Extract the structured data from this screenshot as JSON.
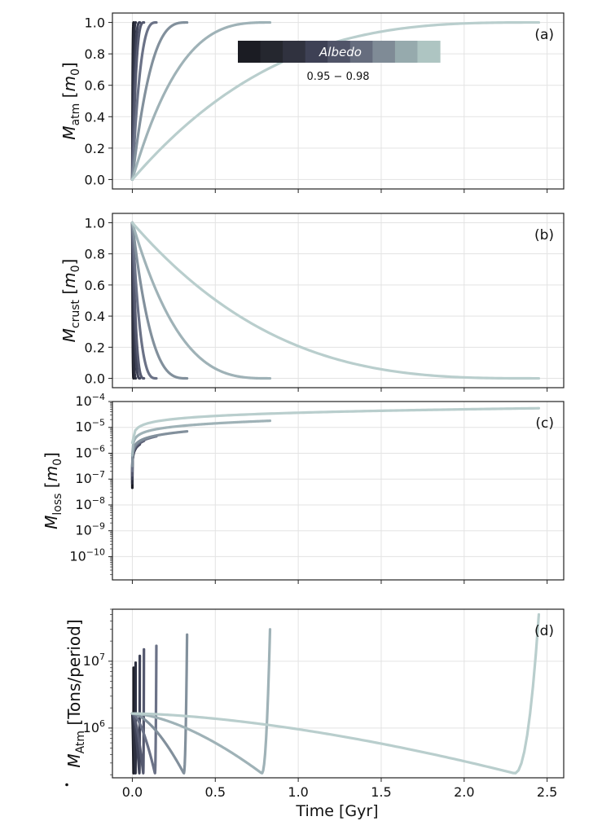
{
  "xlabel": "Time [Gyr]",
  "x_ticks": [
    "0.0",
    "0.5",
    "1.0",
    "1.5",
    "2.0",
    "2.5"
  ],
  "x_tick_values": [
    0,
    0.5,
    1.0,
    1.5,
    2.0,
    2.5
  ],
  "xlim": [
    -0.12,
    2.6
  ],
  "series_colors": [
    "#1b1d26",
    "#2c2f3f",
    "#3f4358",
    "#55596f",
    "#6b7287",
    "#82909c",
    "#9fb2b7",
    "#b9cecd"
  ],
  "series_end_times": [
    0.008,
    0.02,
    0.045,
    0.07,
    0.145,
    0.33,
    0.83,
    2.45
  ],
  "colorbar": {
    "label": "Albedo",
    "range_label": "0.95 − 0.98",
    "colors": [
      "#1b1c23",
      "#25272f",
      "#30323f",
      "#3e4155",
      "#505468",
      "#666d7e",
      "#7f8b96",
      "#96aaad",
      "#aec5c2"
    ]
  },
  "chart_data": [
    {
      "panel": "(a)",
      "type": "line",
      "ylabel_main": "M",
      "ylabel_sub": "atm",
      "ylabel_unit_open": " [",
      "ylabel_unit": "m",
      "ylabel_unit_sub": "0",
      "ylabel_unit_close": "]",
      "y_scale": "linear",
      "ylim": [
        -0.06,
        1.06
      ],
      "y_ticks": [
        "0.0",
        "0.2",
        "0.4",
        "0.6",
        "0.8",
        "1.0"
      ],
      "y_tick_values": [
        0,
        0.2,
        0.4,
        0.6,
        0.8,
        1.0
      ],
      "curve": "rise_from_0_to_1"
    },
    {
      "panel": "(b)",
      "type": "line",
      "ylabel_main": "M",
      "ylabel_sub": "crust",
      "ylabel_unit_open": " [",
      "ylabel_unit": "m",
      "ylabel_unit_sub": "0",
      "ylabel_unit_close": "]",
      "y_scale": "linear",
      "ylim": [
        -0.06,
        1.06
      ],
      "y_ticks": [
        "0.0",
        "0.2",
        "0.4",
        "0.6",
        "0.8",
        "1.0"
      ],
      "y_tick_values": [
        0,
        0.2,
        0.4,
        0.6,
        0.8,
        1.0
      ],
      "curve": "fall_from_1_to_0"
    },
    {
      "panel": "(c)",
      "type": "line",
      "ylabel_main": "M",
      "ylabel_sub": "loss",
      "ylabel_unit_open": " [",
      "ylabel_unit": "m",
      "ylabel_unit_sub": "0",
      "ylabel_unit_close": "]",
      "y_scale": "log",
      "ylim_log10": [
        -10.9,
        -4.0
      ],
      "y_ticks_base": "10",
      "y_ticks_exp": [
        "−4",
        "−5",
        "−6",
        "−7",
        "−8",
        "−9",
        "−10"
      ],
      "y_tick_values_log10": [
        -4,
        -5,
        -6,
        -7,
        -8,
        -9,
        -10
      ],
      "final_values": [
        1e-06,
        1.5e-06,
        2.2e-06,
        3e-06,
        4.5e-06,
        7e-06,
        1.8e-05,
        5.5e-05
      ]
    },
    {
      "panel": "(d)",
      "type": "line",
      "ylabel_main": "M",
      "ylabel_sub": "Atm",
      "ylabel_unit_open": " [",
      "ylabel_unit": "Tons/period",
      "ylabel_unit_sub": "",
      "ylabel_unit_close": "]",
      "y_scale": "log",
      "ylim": [
        180000.0,
        60000000.0
      ],
      "y_ticks_base": "10",
      "y_ticks_exp": [
        "6",
        "7"
      ],
      "y_tick_values": [
        1000000.0,
        10000000.0
      ],
      "start_value": 1650000.0,
      "minimum_value": 210000.0,
      "peak_values": [
        8000000.0,
        9500000.0,
        12000000.0,
        15000000.0,
        17000000.0,
        25000000.0,
        30000000.0,
        50000000.0
      ]
    }
  ]
}
